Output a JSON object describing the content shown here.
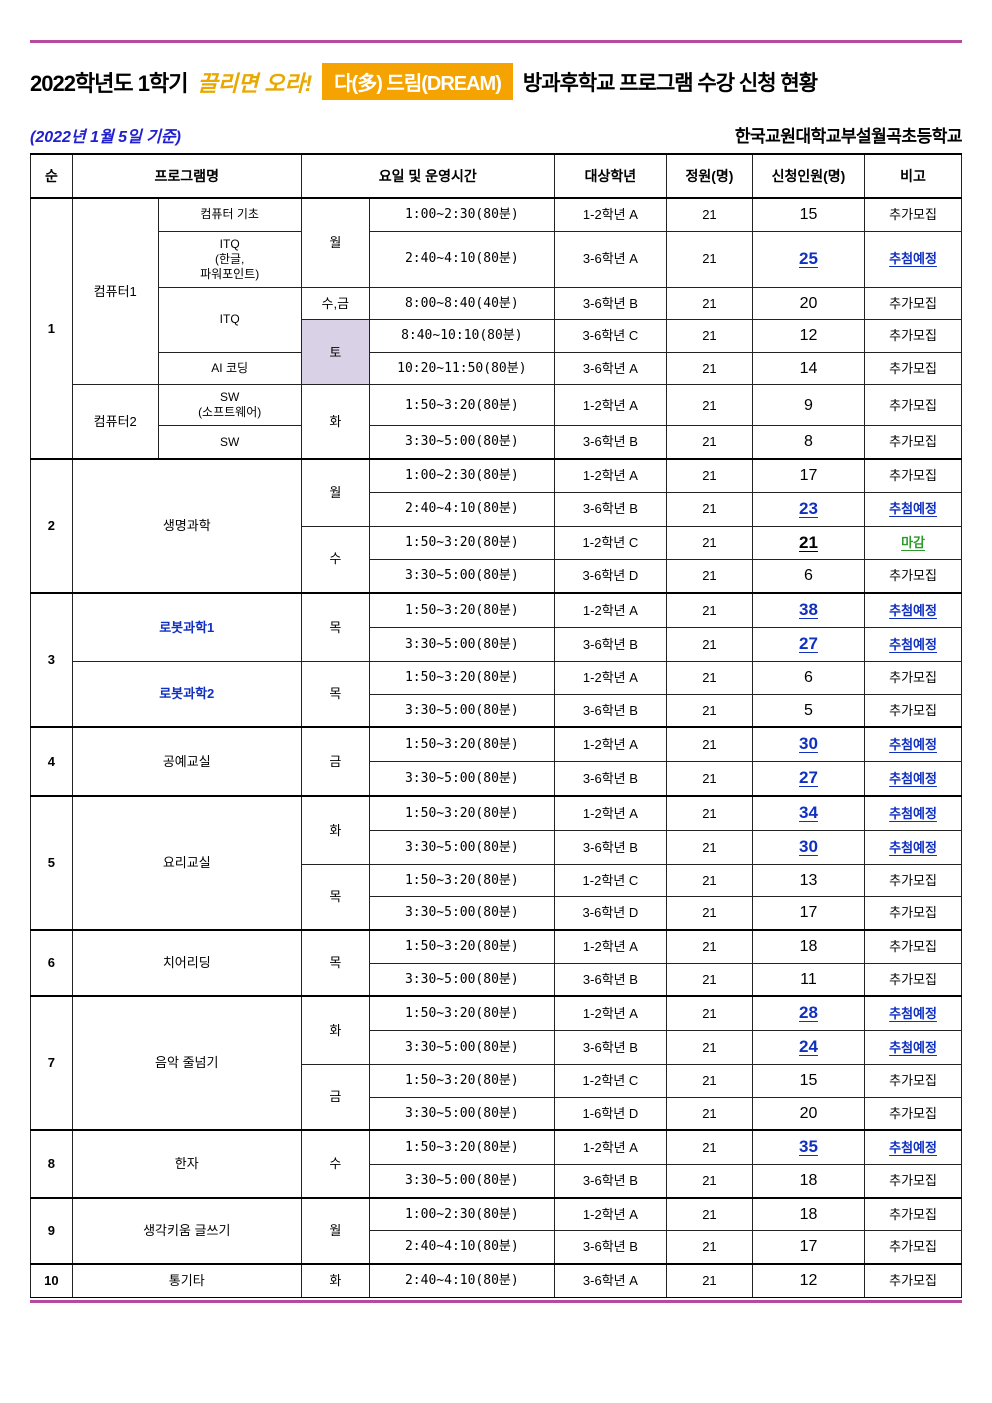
{
  "title": {
    "year": "2022학년도 1학기",
    "script": "끌리면 오라!",
    "badge": "다(多) 드림(DREAM)",
    "tail": "방과후학교 프로그램 수강 신청 현황"
  },
  "date_note": "(2022년 1월 5일 기준)",
  "school": "한국교원대학교부설월곡초등학교",
  "columns": [
    "순",
    "프로그램명",
    "요일 및 운영시간",
    "대상학년",
    "정원(명)",
    "신청인원(명)",
    "비고"
  ],
  "note_labels": {
    "extra": "추가모집",
    "lottery": "추첨예정",
    "closed": "마감"
  },
  "rows": [
    {
      "g": "1",
      "pA": "컴퓨터1",
      "pB": "컴퓨터 기초",
      "day": "월",
      "time": "1:00~2:30(80분)",
      "grade": "1-2학년 A",
      "cap": "21",
      "app": "15",
      "note": "extra",
      "shade": false,
      "link": ""
    },
    {
      "g": "1",
      "pA": "컴퓨터1",
      "pB": "ITQ\n(한글,\n파워포인트)",
      "day": "월",
      "time": "2:40~4:10(80분)",
      "grade": "3-6학년 A",
      "cap": "21",
      "app": "25",
      "note": "lottery",
      "shade": false,
      "link": ""
    },
    {
      "g": "1",
      "pA": "컴퓨터1",
      "pB": "ITQ",
      "day": "수,금",
      "time": "8:00~8:40(40분)",
      "grade": "3-6학년 B",
      "cap": "21",
      "app": "20",
      "note": "extra",
      "shade": false,
      "link": ""
    },
    {
      "g": "1",
      "pA": "컴퓨터1",
      "pB": "ITQ",
      "day": "토",
      "time": "8:40~10:10(80분)",
      "grade": "3-6학년 C",
      "cap": "21",
      "app": "12",
      "note": "extra",
      "shade": true,
      "link": ""
    },
    {
      "g": "1",
      "pA": "컴퓨터1",
      "pB": "AI 코딩",
      "day": "토",
      "time": "10:20~11:50(80분)",
      "grade": "3-6학년 A",
      "cap": "21",
      "app": "14",
      "note": "extra",
      "shade": true,
      "link": ""
    },
    {
      "g": "1",
      "pA": "컴퓨터2",
      "pB": "SW\n(소프트웨어)",
      "day": "화",
      "time": "1:50~3:20(80분)",
      "grade": "1-2학년 A",
      "cap": "21",
      "app": "9",
      "note": "extra",
      "shade": false,
      "link": ""
    },
    {
      "g": "1",
      "pA": "컴퓨터2",
      "pB": "SW",
      "day": "화",
      "time": "3:30~5:00(80분)",
      "grade": "3-6학년 B",
      "cap": "21",
      "app": "8",
      "note": "extra",
      "shade": false,
      "link": ""
    },
    {
      "g": "2",
      "pA": "생명과학",
      "day": "월",
      "time": "1:00~2:30(80분)",
      "grade": "1-2학년 A",
      "cap": "21",
      "app": "17",
      "note": "extra",
      "shade": false,
      "link": ""
    },
    {
      "g": "2",
      "pA": "생명과학",
      "day": "월",
      "time": "2:40~4:10(80분)",
      "grade": "3-6학년 B",
      "cap": "21",
      "app": "23",
      "note": "lottery",
      "shade": false,
      "link": ""
    },
    {
      "g": "2",
      "pA": "생명과학",
      "day": "수",
      "time": "1:50~3:20(80분)",
      "grade": "1-2학년 C",
      "cap": "21",
      "app": "21",
      "note": "closed",
      "shade": false,
      "link": ""
    },
    {
      "g": "2",
      "pA": "생명과학",
      "day": "수",
      "time": "3:30~5:00(80분)",
      "grade": "3-6학년 D",
      "cap": "21",
      "app": "6",
      "note": "extra",
      "shade": false,
      "link": ""
    },
    {
      "g": "3",
      "pA": "로봇과학1",
      "day": "목",
      "time": "1:50~3:20(80분)",
      "grade": "1-2학년 A",
      "cap": "21",
      "app": "38",
      "note": "lottery",
      "shade": false,
      "link": "blue"
    },
    {
      "g": "3",
      "pA": "로봇과학1",
      "day": "목",
      "time": "3:30~5:00(80분)",
      "grade": "3-6학년 B",
      "cap": "21",
      "app": "27",
      "note": "lottery",
      "shade": false,
      "link": "blue"
    },
    {
      "g": "3",
      "pA": "로봇과학2",
      "day": "목",
      "time": "1:50~3:20(80분)",
      "grade": "1-2학년 A",
      "cap": "21",
      "app": "6",
      "note": "extra",
      "shade": false,
      "link": "blue"
    },
    {
      "g": "3",
      "pA": "로봇과학2",
      "day": "목",
      "time": "3:30~5:00(80분)",
      "grade": "3-6학년 B",
      "cap": "21",
      "app": "5",
      "note": "extra",
      "shade": false,
      "link": "blue"
    },
    {
      "g": "4",
      "pA": "공예교실",
      "day": "금",
      "time": "1:50~3:20(80분)",
      "grade": "1-2학년 A",
      "cap": "21",
      "app": "30",
      "note": "lottery",
      "shade": false,
      "link": ""
    },
    {
      "g": "4",
      "pA": "공예교실",
      "day": "금",
      "time": "3:30~5:00(80분)",
      "grade": "3-6학년 B",
      "cap": "21",
      "app": "27",
      "note": "lottery",
      "shade": false,
      "link": ""
    },
    {
      "g": "5",
      "pA": "요리교실",
      "day": "화",
      "time": "1:50~3:20(80분)",
      "grade": "1-2학년 A",
      "cap": "21",
      "app": "34",
      "note": "lottery",
      "shade": false,
      "link": ""
    },
    {
      "g": "5",
      "pA": "요리교실",
      "day": "화",
      "time": "3:30~5:00(80분)",
      "grade": "3-6학년 B",
      "cap": "21",
      "app": "30",
      "note": "lottery",
      "shade": false,
      "link": ""
    },
    {
      "g": "5",
      "pA": "요리교실",
      "day": "목",
      "time": "1:50~3:20(80분)",
      "grade": "1-2학년 C",
      "cap": "21",
      "app": "13",
      "note": "extra",
      "shade": false,
      "link": ""
    },
    {
      "g": "5",
      "pA": "요리교실",
      "day": "목",
      "time": "3:30~5:00(80분)",
      "grade": "3-6학년 D",
      "cap": "21",
      "app": "17",
      "note": "extra",
      "shade": false,
      "link": ""
    },
    {
      "g": "6",
      "pA": "치어리딩",
      "day": "목",
      "time": "1:50~3:20(80분)",
      "grade": "1-2학년 A",
      "cap": "21",
      "app": "18",
      "note": "extra",
      "shade": false,
      "link": ""
    },
    {
      "g": "6",
      "pA": "치어리딩",
      "day": "목",
      "time": "3:30~5:00(80분)",
      "grade": "3-6학년 B",
      "cap": "21",
      "app": "11",
      "note": "extra",
      "shade": false,
      "link": ""
    },
    {
      "g": "7",
      "pA": "음악 줄넘기",
      "day": "화",
      "time": "1:50~3:20(80분)",
      "grade": "1-2학년 A",
      "cap": "21",
      "app": "28",
      "note": "lottery",
      "shade": false,
      "link": ""
    },
    {
      "g": "7",
      "pA": "음악 줄넘기",
      "day": "화",
      "time": "3:30~5:00(80분)",
      "grade": "3-6학년 B",
      "cap": "21",
      "app": "24",
      "note": "lottery",
      "shade": false,
      "link": ""
    },
    {
      "g": "7",
      "pA": "음악 줄넘기",
      "day": "금",
      "time": "1:50~3:20(80분)",
      "grade": "1-2학년 C",
      "cap": "21",
      "app": "15",
      "note": "extra",
      "shade": false,
      "link": ""
    },
    {
      "g": "7",
      "pA": "음악 줄넘기",
      "day": "금",
      "time": "3:30~5:00(80분)",
      "grade": "1-6학년 D",
      "cap": "21",
      "app": "20",
      "note": "extra",
      "shade": false,
      "link": ""
    },
    {
      "g": "8",
      "pA": "한자",
      "day": "수",
      "time": "1:50~3:20(80분)",
      "grade": "1-2학년 A",
      "cap": "21",
      "app": "35",
      "note": "lottery",
      "shade": false,
      "link": ""
    },
    {
      "g": "8",
      "pA": "한자",
      "day": "수",
      "time": "3:30~5:00(80분)",
      "grade": "3-6학년 B",
      "cap": "21",
      "app": "18",
      "note": "extra",
      "shade": false,
      "link": ""
    },
    {
      "g": "9",
      "pA": "생각키움 글쓰기",
      "day": "월",
      "time": "1:00~2:30(80분)",
      "grade": "1-2학년 A",
      "cap": "21",
      "app": "18",
      "note": "extra",
      "shade": false,
      "link": ""
    },
    {
      "g": "9",
      "pA": "생각키움 글쓰기",
      "day": "월",
      "time": "2:40~4:10(80분)",
      "grade": "3-6학년 B",
      "cap": "21",
      "app": "17",
      "note": "extra",
      "shade": false,
      "link": ""
    },
    {
      "g": "10",
      "pA": "통기타",
      "day": "화",
      "time": "2:40~4:10(80분)",
      "grade": "3-6학년 A",
      "cap": "21",
      "app": "12",
      "note": "extra",
      "shade": false,
      "link": ""
    }
  ]
}
